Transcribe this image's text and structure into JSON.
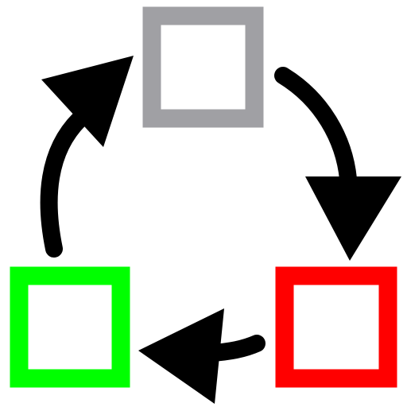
{
  "diagram": {
    "type": "cycle",
    "nodes": [
      {
        "id": "top",
        "position": "top-center",
        "stroke_color": "#a0a0a4",
        "fill_color": "#ffffff"
      },
      {
        "id": "right",
        "position": "bottom-right",
        "stroke_color": "#ff0000",
        "fill_color": "#ffffff"
      },
      {
        "id": "left",
        "position": "bottom-left",
        "stroke_color": "#00ff00",
        "fill_color": "#ffffff"
      }
    ],
    "edges": [
      {
        "from": "top",
        "to": "right",
        "color": "#000000"
      },
      {
        "from": "right",
        "to": "left",
        "color": "#000000"
      },
      {
        "from": "left",
        "to": "top",
        "color": "#000000"
      }
    ],
    "direction": "clockwise"
  }
}
